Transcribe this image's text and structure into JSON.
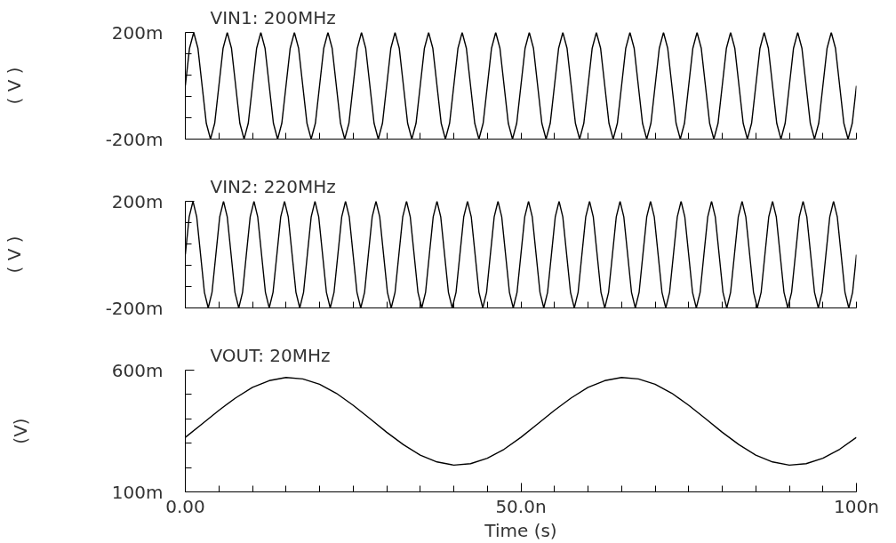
{
  "chart_data": [
    {
      "type": "line",
      "title": "VIN1: 200MHz",
      "ylabel": "( V )",
      "color": "#000000",
      "tick_labels": "y",
      "xlim": [
        0,
        100
      ],
      "ylim": [
        -200,
        200
      ],
      "xticks": [
        {
          "value": 0,
          "label": null
        },
        {
          "value": 5,
          "label": null
        },
        {
          "value": 10,
          "label": null
        },
        {
          "value": 15,
          "label": null
        },
        {
          "value": 20,
          "label": null
        },
        {
          "value": 25,
          "label": null
        },
        {
          "value": 30,
          "label": null
        },
        {
          "value": 35,
          "label": null
        },
        {
          "value": 40,
          "label": null
        },
        {
          "value": 45,
          "label": null
        },
        {
          "value": 50,
          "label": null
        },
        {
          "value": 55,
          "label": null
        },
        {
          "value": 60,
          "label": null
        },
        {
          "value": 65,
          "label": null
        },
        {
          "value": 70,
          "label": null
        },
        {
          "value": 75,
          "label": null
        },
        {
          "value": 80,
          "label": null
        },
        {
          "value": 85,
          "label": null
        },
        {
          "value": 90,
          "label": null
        },
        {
          "value": 95,
          "label": null
        },
        {
          "value": 100,
          "label": null
        }
      ],
      "yticks": [
        {
          "value": -200,
          "label": "-200m"
        },
        {
          "value": -120,
          "label": null
        },
        {
          "value": -40,
          "label": null
        },
        {
          "value": 40,
          "label": null
        },
        {
          "value": 120,
          "label": null
        },
        {
          "value": 200,
          "label": "200m"
        }
      ],
      "x": [
        0,
        0.625,
        1.25,
        1.875,
        2.5,
        3.125,
        3.75,
        4.375,
        5,
        5.625,
        6.25,
        6.875,
        7.5,
        8.125,
        8.75,
        9.375,
        10,
        10.625,
        11.25,
        11.875,
        12.5,
        13.125,
        13.75,
        14.375,
        15,
        15.625,
        16.25,
        16.875,
        17.5,
        18.125,
        18.75,
        19.375,
        20,
        20.625,
        21.25,
        21.875,
        22.5,
        23.125,
        23.75,
        24.375,
        25,
        25.625,
        26.25,
        26.875,
        27.5,
        28.125,
        28.75,
        29.375,
        30,
        30.625,
        31.25,
        31.875,
        32.5,
        33.125,
        33.75,
        34.375,
        35,
        35.625,
        36.25,
        36.875,
        37.5,
        38.125,
        38.75,
        39.375,
        40,
        40.625,
        41.25,
        41.875,
        42.5,
        43.125,
        43.75,
        44.375,
        45,
        45.625,
        46.25,
        46.875,
        47.5,
        48.125,
        48.75,
        49.375,
        50,
        50.625,
        51.25,
        51.875,
        52.5,
        53.125,
        53.75,
        54.375,
        55,
        55.625,
        56.25,
        56.875,
        57.5,
        58.125,
        58.75,
        59.375,
        60,
        60.625,
        61.25,
        61.875,
        62.5,
        63.125,
        63.75,
        64.375,
        65,
        65.625,
        66.25,
        66.875,
        67.5,
        68.125,
        68.75,
        69.375,
        70,
        70.625,
        71.25,
        71.875,
        72.5,
        73.125,
        73.75,
        74.375,
        75,
        75.625,
        76.25,
        76.875,
        77.5,
        78.125,
        78.75,
        79.375,
        80,
        80.625,
        81.25,
        81.875,
        82.5,
        83.125,
        83.75,
        84.375,
        85,
        85.625,
        86.25,
        86.875,
        87.5,
        88.125,
        88.75,
        89.375,
        90,
        90.625,
        91.25,
        91.875,
        92.5,
        93.125,
        93.75,
        94.375,
        95,
        95.625,
        96.25,
        96.875,
        97.5,
        98.125,
        98.75,
        99.375,
        100
      ],
      "values": [
        0,
        141,
        200,
        141,
        0,
        -141,
        -200,
        -141,
        0,
        141,
        200,
        141,
        0,
        -141,
        -200,
        -141,
        0,
        141,
        200,
        141,
        0,
        -141,
        -200,
        -141,
        0,
        141,
        200,
        141,
        0,
        -141,
        -200,
        -141,
        0,
        141,
        200,
        141,
        0,
        -141,
        -200,
        -141,
        0,
        141,
        200,
        141,
        0,
        -141,
        -200,
        -141,
        0,
        141,
        200,
        141,
        0,
        -141,
        -200,
        -141,
        0,
        141,
        200,
        141,
        0,
        -141,
        -200,
        -141,
        0,
        141,
        200,
        141,
        0,
        -141,
        -200,
        -141,
        0,
        141,
        200,
        141,
        0,
        -141,
        -200,
        -141,
        0,
        141,
        200,
        141,
        0,
        -141,
        -200,
        -141,
        0,
        141,
        200,
        141,
        0,
        -141,
        -200,
        -141,
        0,
        141,
        200,
        141,
        0,
        -141,
        -200,
        -141,
        0,
        141,
        200,
        141,
        0,
        -141,
        -200,
        -141,
        0,
        141,
        200,
        141,
        0,
        -141,
        -200,
        -141,
        0,
        141,
        200,
        141,
        0,
        -141,
        -200,
        -141,
        0,
        141,
        200,
        141,
        0,
        -141,
        -200,
        -141,
        0,
        141,
        200,
        141,
        0,
        -141,
        -200,
        -141,
        0,
        141,
        200,
        141,
        0,
        -141,
        -200,
        -141,
        0,
        141,
        200,
        141,
        0,
        -141,
        -200,
        -141,
        0
      ]
    },
    {
      "type": "line",
      "title": "VIN2: 220MHz",
      "ylabel": "( V )",
      "color": "#000000",
      "tick_labels": "y",
      "xlim": [
        0,
        100
      ],
      "ylim": [
        -200,
        200
      ],
      "xticks": [
        {
          "value": 0,
          "label": null
        },
        {
          "value": 5,
          "label": null
        },
        {
          "value": 10,
          "label": null
        },
        {
          "value": 15,
          "label": null
        },
        {
          "value": 20,
          "label": null
        },
        {
          "value": 25,
          "label": null
        },
        {
          "value": 30,
          "label": null
        },
        {
          "value": 35,
          "label": null
        },
        {
          "value": 40,
          "label": null
        },
        {
          "value": 45,
          "label": null
        },
        {
          "value": 50,
          "label": null
        },
        {
          "value": 55,
          "label": null
        },
        {
          "value": 60,
          "label": null
        },
        {
          "value": 65,
          "label": null
        },
        {
          "value": 70,
          "label": null
        },
        {
          "value": 75,
          "label": null
        },
        {
          "value": 80,
          "label": null
        },
        {
          "value": 85,
          "label": null
        },
        {
          "value": 90,
          "label": null
        },
        {
          "value": 95,
          "label": null
        },
        {
          "value": 100,
          "label": null
        }
      ],
      "yticks": [
        {
          "value": -200,
          "label": "-200m"
        },
        {
          "value": -120,
          "label": null
        },
        {
          "value": -40,
          "label": null
        },
        {
          "value": 40,
          "label": null
        },
        {
          "value": 120,
          "label": null
        },
        {
          "value": 200,
          "label": "200m"
        }
      ],
      "x": [
        0,
        0.57,
        1.14,
        1.7,
        2.27,
        2.84,
        3.41,
        3.98,
        4.55,
        5.12,
        5.69,
        6.25,
        6.82,
        7.39,
        7.96,
        8.53,
        9.09,
        9.66,
        10.23,
        10.79,
        11.36,
        11.93,
        12.5,
        13.07,
        13.64,
        14.21,
        14.78,
        15.34,
        15.91,
        16.48,
        17.05,
        17.62,
        18.18,
        18.75,
        19.32,
        19.88,
        20.45,
        21.02,
        21.59,
        22.16,
        22.73,
        23.3,
        23.87,
        24.43,
        25.0,
        25.57,
        26.14,
        26.71,
        27.27,
        27.84,
        28.41,
        28.97,
        29.54,
        30.11,
        30.68,
        31.25,
        31.82,
        32.39,
        32.96,
        33.52,
        34.09,
        34.66,
        35.23,
        35.8,
        36.36,
        36.93,
        37.5,
        38.06,
        38.63,
        39.2,
        39.77,
        40.34,
        40.91,
        41.48,
        42.05,
        42.61,
        43.18,
        43.75,
        44.32,
        44.89,
        45.45,
        46.02,
        46.59,
        47.15,
        47.72,
        48.29,
        48.86,
        49.43,
        50,
        50.57,
        51.14,
        51.7,
        52.27,
        52.84,
        53.41,
        53.98,
        54.55,
        55.12,
        55.69,
        56.25,
        56.82,
        57.39,
        57.96,
        58.53,
        59.09,
        59.66,
        60.23,
        60.79,
        61.36,
        61.93,
        62.5,
        63.07,
        63.64,
        64.21,
        64.78,
        65.34,
        65.91,
        66.48,
        67.05,
        67.62,
        68.18,
        68.75,
        69.32,
        69.88,
        70.45,
        71.02,
        71.59,
        72.16,
        72.73,
        73.3,
        73.87,
        74.43,
        75.0,
        75.57,
        76.14,
        76.71,
        77.27,
        77.84,
        78.41,
        78.97,
        79.54,
        80.11,
        80.68,
        81.25,
        81.82,
        82.39,
        82.96,
        83.52,
        84.09,
        84.66,
        85.23,
        85.8,
        86.36,
        86.93,
        87.5,
        88.06,
        88.63,
        89.2,
        89.77,
        90.34,
        90.91,
        91.48,
        92.05,
        92.61,
        93.18,
        93.75,
        94.32,
        94.89,
        95.45,
        96.02,
        96.59,
        97.15,
        97.72,
        98.29,
        98.86,
        99.43,
        100
      ],
      "values": [
        0,
        141,
        200,
        141,
        0,
        -141,
        -200,
        -141,
        0,
        141,
        200,
        141,
        0,
        -141,
        -200,
        -141,
        0,
        141,
        200,
        141,
        0,
        -141,
        -200,
        -141,
        0,
        141,
        200,
        141,
        0,
        -141,
        -200,
        -141,
        0,
        141,
        200,
        141,
        0,
        -141,
        -200,
        -141,
        0,
        141,
        200,
        141,
        0,
        -141,
        -200,
        -141,
        0,
        141,
        200,
        141,
        0,
        -141,
        -200,
        -141,
        0,
        141,
        200,
        141,
        0,
        -141,
        -200,
        -141,
        0,
        141,
        200,
        141,
        0,
        -141,
        -200,
        -141,
        0,
        141,
        200,
        141,
        0,
        -141,
        -200,
        -141,
        0,
        141,
        200,
        141,
        0,
        -141,
        -200,
        -141,
        0,
        141,
        200,
        141,
        0,
        -141,
        -200,
        -141,
        0,
        141,
        200,
        141,
        0,
        -141,
        -200,
        -141,
        0,
        141,
        200,
        141,
        0,
        -141,
        -200,
        -141,
        0,
        141,
        200,
        141,
        0,
        -141,
        -200,
        -141,
        0,
        141,
        200,
        141,
        0,
        -141,
        -200,
        -141,
        0,
        141,
        200,
        141,
        0,
        -141,
        -200,
        -141,
        0,
        141,
        200,
        141,
        0,
        -141,
        -200,
        -141,
        0,
        141,
        200,
        141,
        0,
        -141,
        -200,
        -141,
        0,
        141,
        200,
        141,
        0,
        -141,
        -200,
        -141,
        0,
        141,
        200,
        141,
        0,
        -141,
        -200,
        -141,
        0,
        141,
        200,
        141,
        0,
        -141,
        -200,
        -141,
        0
      ]
    },
    {
      "type": "line",
      "title": "VOUT: 20MHz",
      "ylabel": "(V)",
      "xlabel": "Time (s)",
      "color": "#000000",
      "xlim": [
        0,
        100
      ],
      "ylim": [
        100,
        600
      ],
      "xticks": [
        {
          "value": 0,
          "label": "0.00"
        },
        {
          "value": 5,
          "label": null
        },
        {
          "value": 10,
          "label": null
        },
        {
          "value": 15,
          "label": null
        },
        {
          "value": 20,
          "label": null
        },
        {
          "value": 25,
          "label": null
        },
        {
          "value": 30,
          "label": null
        },
        {
          "value": 35,
          "label": null
        },
        {
          "value": 40,
          "label": null
        },
        {
          "value": 45,
          "label": null
        },
        {
          "value": 50,
          "label": "50.0n"
        },
        {
          "value": 55,
          "label": null
        },
        {
          "value": 60,
          "label": null
        },
        {
          "value": 65,
          "label": null
        },
        {
          "value": 70,
          "label": null
        },
        {
          "value": 75,
          "label": null
        },
        {
          "value": 80,
          "label": null
        },
        {
          "value": 85,
          "label": null
        },
        {
          "value": 90,
          "label": null
        },
        {
          "value": 95,
          "label": null
        },
        {
          "value": 100,
          "label": "100n"
        }
      ],
      "yticks": [
        {
          "value": 100,
          "label": "100m"
        },
        {
          "value": 200,
          "label": null
        },
        {
          "value": 300,
          "label": null
        },
        {
          "value": 400,
          "label": null
        },
        {
          "value": 500,
          "label": null
        },
        {
          "value": 600,
          "label": "600m"
        }
      ],
      "x": [
        0,
        2.5,
        5,
        7.5,
        10,
        12.5,
        15,
        17.5,
        20,
        22.5,
        25,
        27.5,
        30,
        32.5,
        35,
        37.5,
        40,
        42.5,
        45,
        47.5,
        50,
        52.5,
        55,
        57.5,
        60,
        62.5,
        65,
        67.5,
        70,
        72.5,
        75,
        77.5,
        80,
        82.5,
        85,
        87.5,
        90,
        92.5,
        95,
        97.5,
        100
      ],
      "values": [
        324,
        379,
        435,
        486,
        529,
        557,
        570,
        564,
        542,
        505,
        456,
        401,
        345,
        294,
        251,
        223,
        210,
        216,
        238,
        275,
        324,
        379,
        435,
        486,
        529,
        557,
        570,
        564,
        542,
        505,
        456,
        401,
        345,
        294,
        251,
        223,
        210,
        216,
        238,
        275,
        324
      ]
    }
  ]
}
